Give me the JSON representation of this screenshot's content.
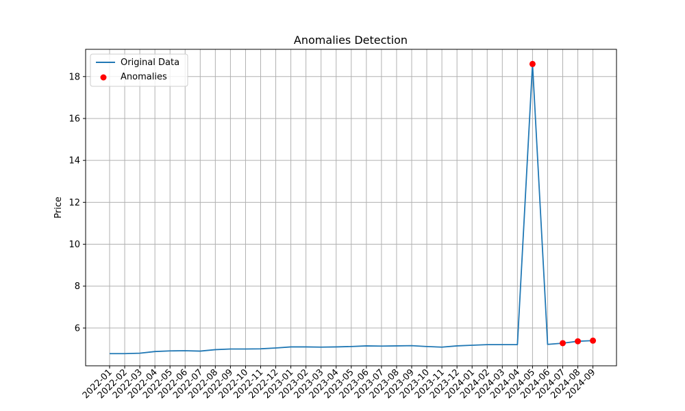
{
  "chart_data": {
    "type": "line",
    "title": "Anomalies Detection",
    "xlabel": "",
    "ylabel": "Price",
    "x": [
      "2022-01",
      "2022-02",
      "2022-03",
      "2022-04",
      "2022-05",
      "2022-06",
      "2022-07",
      "2022-08",
      "2022-09",
      "2022-10",
      "2022-11",
      "2022-12",
      "2023-01",
      "2023-02",
      "2023-03",
      "2023-04",
      "2023-05",
      "2023-06",
      "2023-07",
      "2023-08",
      "2023-09",
      "2023-10",
      "2023-11",
      "2023-12",
      "2024-01",
      "2024-02",
      "2024-03",
      "2024-04",
      "2024-05",
      "2024-06",
      "2024-07",
      "2024-08",
      "2024-09"
    ],
    "ylim": [
      4.2,
      19.3
    ],
    "yticks": [
      6,
      8,
      10,
      12,
      14,
      16,
      18
    ],
    "grid": true,
    "legend_position": "top-left",
    "series": [
      {
        "name": "Original Data",
        "kind": "line",
        "color": "#1f77b4",
        "values": [
          4.78,
          4.78,
          4.8,
          4.88,
          4.91,
          4.92,
          4.9,
          4.97,
          5.0,
          5.0,
          5.01,
          5.05,
          5.1,
          5.1,
          5.09,
          5.1,
          5.12,
          5.15,
          5.14,
          5.15,
          5.16,
          5.12,
          5.09,
          5.15,
          5.18,
          5.21,
          5.21,
          5.21,
          18.6,
          5.22,
          5.28,
          5.37,
          5.4
        ]
      },
      {
        "name": "Anomalies",
        "kind": "scatter",
        "color": "#ff0000",
        "points": [
          {
            "x": "2024-05",
            "y": 18.6
          },
          {
            "x": "2024-07",
            "y": 5.28
          },
          {
            "x": "2024-08",
            "y": 5.37
          },
          {
            "x": "2024-09",
            "y": 5.4
          }
        ]
      }
    ]
  }
}
